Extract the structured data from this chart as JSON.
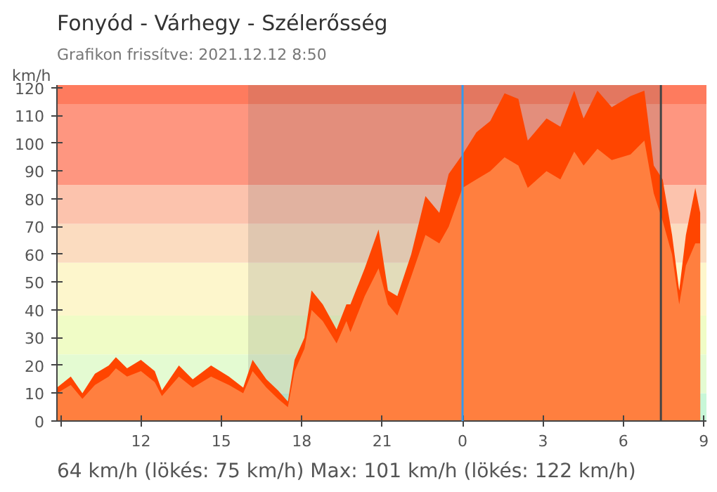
{
  "chart_data": {
    "type": "area",
    "title": "Fonyód - Várhegy - Szélerősség",
    "subtitle": "Grafikon frissítve: 2021.12.12 8:50",
    "ylabel": "km/h",
    "annotations": [
      "64 km/h  (lökés: 75 km/h)  Max: 101 km/h (lökés: 122 km/h)"
    ],
    "x": [
      "2021-12-11T08:52",
      "2021-12-11T09:23",
      "2021-12-11T09:49",
      "2021-12-11T10:17",
      "2021-12-11T10:48",
      "2021-12-11T11:04",
      "2021-12-11T11:29",
      "2021-12-11T12:00",
      "2021-12-11T12:31",
      "2021-12-11T12:47",
      "2021-12-11T13:25",
      "2021-12-11T13:56",
      "2021-12-11T14:37",
      "2021-12-11T15:17",
      "2021-12-11T15:49",
      "2021-12-11T16:10",
      "2021-12-11T16:41",
      "2021-12-11T17:07",
      "2021-12-11T17:29",
      "2021-12-11T17:44",
      "2021-12-11T18:06",
      "2021-12-11T18:22",
      "2021-12-11T18:47",
      "2021-12-11T19:18",
      "2021-12-11T19:40",
      "2021-12-11T19:49",
      "2021-12-11T20:21",
      "2021-12-11T20:52",
      "2021-12-11T21:13",
      "2021-12-11T21:34",
      "2021-12-11T22:05",
      "2021-12-11T22:37",
      "2021-12-11T23:08",
      "2021-12-11T23:29",
      "2021-12-12T00:00",
      "2021-12-12T00:31",
      "2021-12-12T01:02",
      "2021-12-12T01:34",
      "2021-12-12T02:05",
      "2021-12-12T02:26",
      "2021-12-12T03:08",
      "2021-12-12T03:39",
      "2021-12-12T04:10",
      "2021-12-12T04:31",
      "2021-12-12T05:02",
      "2021-12-12T05:34",
      "2021-12-12T06:16",
      "2021-12-12T06:47",
      "2021-12-12T07:08",
      "2021-12-12T07:28",
      "2021-12-12T07:49",
      "2021-12-12T08:05",
      "2021-12-12T08:20",
      "2021-12-12T08:41",
      "2021-12-12T08:52"
    ],
    "series": [
      {
        "color": "#ff4500",
        "values": [
          12,
          16,
          10,
          17,
          20,
          23,
          19,
          22,
          18,
          11,
          20,
          15,
          20,
          16,
          12,
          22,
          15,
          11,
          7,
          22,
          30,
          47,
          42,
          33,
          42,
          42,
          55,
          69,
          47,
          45,
          60,
          81,
          75,
          89,
          96,
          104,
          108,
          118,
          116,
          101,
          109,
          106,
          119,
          109,
          119,
          113,
          117,
          119,
          92,
          87,
          67,
          47,
          67,
          84,
          75
        ]
      },
      {
        "color": "#ff7f3f",
        "values": [
          10,
          13,
          8,
          13,
          16,
          19,
          16,
          18,
          14,
          9,
          16,
          12,
          16,
          13,
          10,
          18,
          12,
          8,
          5,
          18,
          26,
          40,
          36,
          28,
          36,
          32,
          45,
          55,
          42,
          38,
          52,
          67,
          64,
          70,
          84,
          87,
          90,
          95,
          92,
          84,
          90,
          87,
          97,
          92,
          98,
          94,
          96,
          101,
          82,
          72,
          60,
          42,
          56,
          64,
          64
        ]
      }
    ],
    "xlim": [
      "2021-12-11T08:52",
      "2021-12-12T09:06"
    ],
    "xticks": [
      {
        "value": "2021-12-11T09:00",
        "label": null
      },
      {
        "value": "2021-12-11T12:00",
        "label": "12"
      },
      {
        "value": "2021-12-11T15:00",
        "label": "15"
      },
      {
        "value": "2021-12-11T18:00",
        "label": "18"
      },
      {
        "value": "2021-12-11T21:00",
        "label": "21"
      },
      {
        "value": "2021-12-12T00:00",
        "label": "0"
      },
      {
        "value": "2021-12-12T03:00",
        "label": "3"
      },
      {
        "value": "2021-12-12T06:00",
        "label": "6"
      },
      {
        "value": "2021-12-12T09:00",
        "label": "9"
      }
    ],
    "ylim": [
      0,
      121
    ],
    "yticks": [
      0,
      10,
      20,
      30,
      40,
      50,
      60,
      70,
      80,
      90,
      100,
      110,
      120
    ],
    "bands": [
      {
        "axis": "y",
        "from": 0,
        "to": 10,
        "color": "#c8f7d8"
      },
      {
        "axis": "y",
        "from": 10,
        "to": 24,
        "color": "#e4fbd2"
      },
      {
        "axis": "y",
        "from": 24,
        "to": 38,
        "color": "#f0fcc6"
      },
      {
        "axis": "y",
        "from": 38,
        "to": 57,
        "color": "#fdf6cc"
      },
      {
        "axis": "y",
        "from": 57,
        "to": 71,
        "color": "#fbdcc0"
      },
      {
        "axis": "y",
        "from": 71,
        "to": 85,
        "color": "#fcc3ad"
      },
      {
        "axis": "y",
        "from": 85,
        "to": 114,
        "color": "#fe9680"
      },
      {
        "axis": "y",
        "from": 114,
        "to": 121,
        "color": "#fe7b5e"
      },
      {
        "axis": "x",
        "from": "2021-12-11T16:00",
        "to": "2021-12-12T07:24",
        "color": "#6a6a6a"
      }
    ],
    "ref_lines": [
      {
        "axis": "x",
        "value": "2021-12-12T00:00",
        "color": "#3399ee"
      },
      {
        "axis": "x",
        "value": "2021-12-12T07:24",
        "color": "#444444"
      }
    ]
  }
}
